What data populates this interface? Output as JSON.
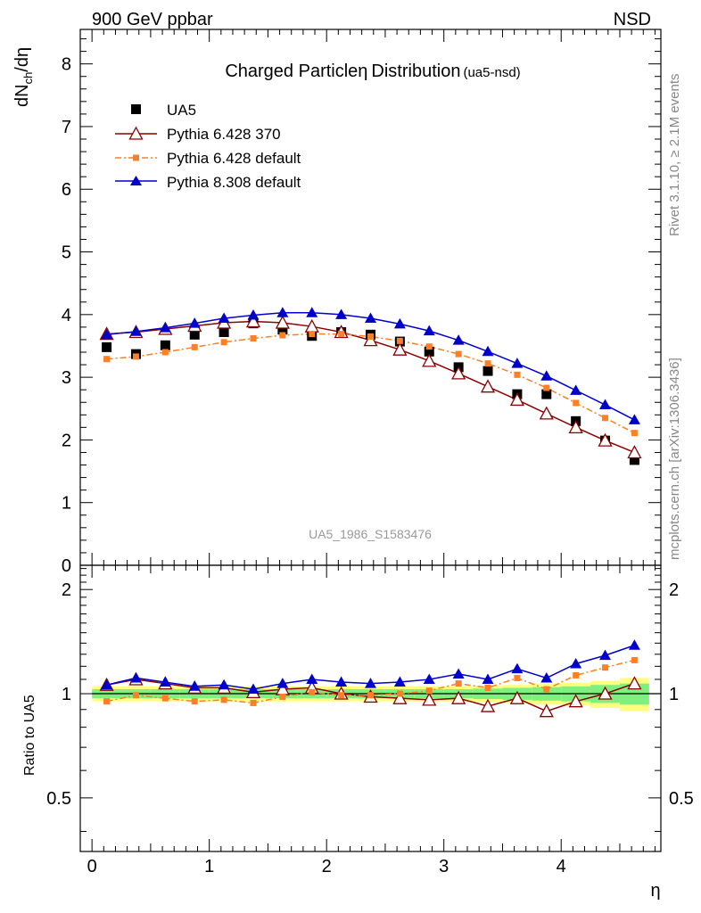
{
  "header": {
    "energy_label": "900 GeV ppbar",
    "process_label": "NSD"
  },
  "side_text": {
    "rivet": "Rivet 3.1.10, ≥ 2.1M events",
    "mcplots": "mcplots.cern.ch [arXiv:1306.3436]"
  },
  "colors": {
    "data": "#000000",
    "pythia6_370": "#8b0000",
    "pythia6_default": "#ff7f24",
    "pythia8_default": "#0000cc",
    "band_inner": "#7ff07f",
    "band_outer": "#ffff7f"
  },
  "chart_data": [
    {
      "type": "line",
      "title": "Charged Particle",
      "title_symbol": "η",
      "title_rest": "Distribution",
      "title_tag": "(ua5-nsd)",
      "ylabel_main": "dN",
      "ylabel_sub": "ch",
      "ylabel_tail": "/dη",
      "analysis_label": "UA5_1986_S1583476",
      "xlim": [
        -0.1,
        4.85
      ],
      "ylim": [
        0,
        8.55
      ],
      "yticks": [
        0,
        1,
        2,
        3,
        4,
        5,
        6,
        7,
        8
      ],
      "x": [
        0.125,
        0.375,
        0.625,
        0.875,
        1.125,
        1.375,
        1.625,
        1.875,
        2.125,
        2.375,
        2.625,
        2.875,
        3.125,
        3.375,
        3.625,
        3.875,
        4.125,
        4.375,
        4.625
      ],
      "legend_position": "top-left",
      "series": [
        {
          "name": "UA5",
          "key": "ua5",
          "marker": "square",
          "values": [
            3.48,
            3.37,
            3.51,
            3.68,
            3.72,
            3.86,
            3.76,
            3.66,
            3.72,
            3.68,
            3.57,
            3.41,
            3.16,
            3.1,
            2.73,
            2.73,
            2.3,
            1.99,
            1.68
          ]
        },
        {
          "name": "Pythia 6.428 370",
          "key": "p6_370",
          "marker": "triangle-open",
          "values": [
            3.69,
            3.72,
            3.77,
            3.82,
            3.87,
            3.89,
            3.87,
            3.81,
            3.72,
            3.59,
            3.44,
            3.26,
            3.06,
            2.85,
            2.64,
            2.42,
            2.2,
            1.99,
            1.8
          ]
        },
        {
          "name": "Pythia 6.428 default",
          "key": "p6_def",
          "marker": "small-square",
          "values": [
            3.29,
            3.33,
            3.4,
            3.48,
            3.56,
            3.62,
            3.67,
            3.69,
            3.69,
            3.65,
            3.58,
            3.49,
            3.37,
            3.22,
            3.04,
            2.83,
            2.59,
            2.35,
            2.11
          ]
        },
        {
          "name": "Pythia 8.308 default",
          "key": "p8_def",
          "marker": "triangle",
          "values": [
            3.68,
            3.73,
            3.79,
            3.86,
            3.94,
            3.99,
            4.03,
            4.03,
            4.0,
            3.94,
            3.85,
            3.74,
            3.59,
            3.41,
            3.22,
            3.02,
            2.79,
            2.56,
            2.32
          ]
        }
      ]
    },
    {
      "type": "line",
      "title": "",
      "ylabel": "Ratio to UA5",
      "xlabel": "η",
      "xlim": [
        -0.1,
        4.85
      ],
      "xticks": [
        0,
        1,
        2,
        3,
        4
      ],
      "ylim": [
        0.35,
        2.35
      ],
      "yticks": [
        0.5,
        1,
        2
      ],
      "ytick_labels": [
        "0.5",
        "1",
        "2"
      ],
      "x": [
        0.125,
        0.375,
        0.625,
        0.875,
        1.125,
        1.375,
        1.625,
        1.875,
        2.125,
        2.375,
        2.625,
        2.875,
        3.125,
        3.375,
        3.625,
        3.875,
        4.125,
        4.375,
        4.625
      ],
      "uncertainty_band": {
        "edges": [
          0,
          0.25,
          0.5,
          0.75,
          1.0,
          1.25,
          1.5,
          1.75,
          2.0,
          2.25,
          2.5,
          2.75,
          3.0,
          3.25,
          3.5,
          3.75,
          4.0,
          4.25,
          4.5,
          4.75
        ],
        "inner": [
          0.03,
          0.03,
          0.03,
          0.03,
          0.03,
          0.03,
          0.03,
          0.03,
          0.03,
          0.03,
          0.03,
          0.03,
          0.03,
          0.035,
          0.04,
          0.045,
          0.05,
          0.06,
          0.07
        ],
        "outer": [
          0.05,
          0.05,
          0.05,
          0.05,
          0.05,
          0.05,
          0.05,
          0.05,
          0.05,
          0.05,
          0.05,
          0.05,
          0.05,
          0.055,
          0.06,
          0.07,
          0.075,
          0.09,
          0.11
        ]
      },
      "series": [
        {
          "name": "Pythia 6.428 370",
          "key": "p6_370",
          "marker": "triangle-open",
          "values": [
            1.06,
            1.1,
            1.07,
            1.04,
            1.04,
            1.01,
            1.03,
            1.04,
            1.0,
            0.98,
            0.97,
            0.96,
            0.97,
            0.92,
            0.97,
            0.89,
            0.95,
            1.0,
            1.07
          ]
        },
        {
          "name": "Pythia 6.428 default",
          "key": "p6_def",
          "marker": "small-square",
          "values": [
            0.95,
            0.99,
            0.97,
            0.95,
            0.96,
            0.94,
            0.98,
            1.01,
            0.99,
            0.99,
            1.0,
            1.02,
            1.07,
            1.04,
            1.11,
            1.03,
            1.13,
            1.19,
            1.25
          ]
        },
        {
          "name": "Pythia 8.308 default",
          "key": "p8_def",
          "marker": "triangle",
          "values": [
            1.06,
            1.11,
            1.08,
            1.05,
            1.06,
            1.03,
            1.07,
            1.1,
            1.08,
            1.07,
            1.08,
            1.1,
            1.14,
            1.1,
            1.18,
            1.11,
            1.22,
            1.29,
            1.38
          ]
        }
      ]
    }
  ]
}
